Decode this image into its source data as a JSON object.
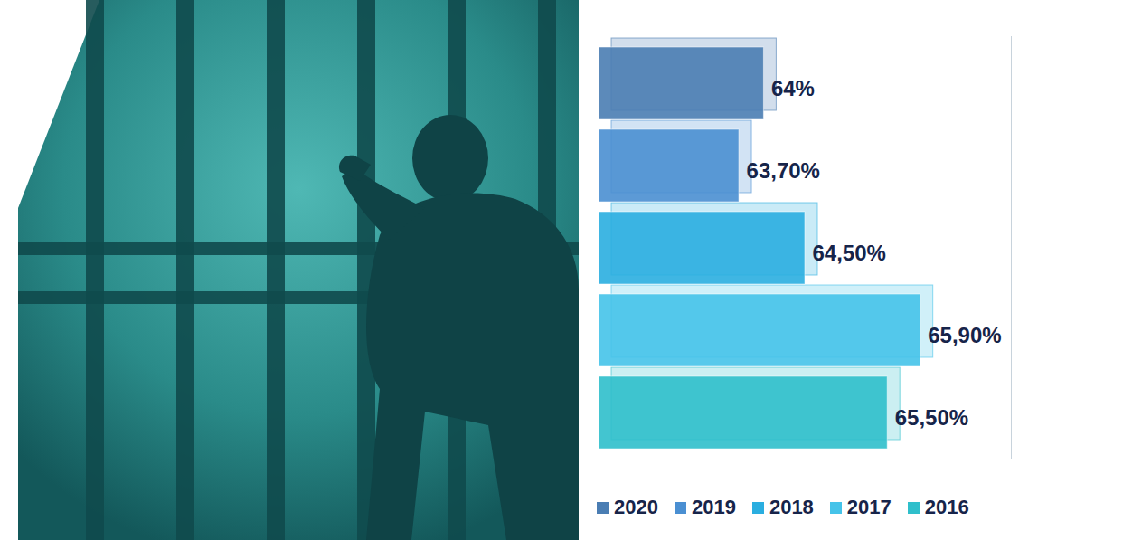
{
  "chart_data": {
    "type": "bar",
    "orientation": "horizontal",
    "categories": [
      "2020",
      "2019",
      "2018",
      "2017",
      "2016"
    ],
    "values": [
      64,
      63.7,
      64.5,
      65.9,
      65.5
    ],
    "value_labels": [
      "64%",
      "63,70%",
      "64,50%",
      "65,90%",
      "65,50%"
    ],
    "colors": [
      "#4a7db3",
      "#4a8fd2",
      "#2aaee0",
      "#45c3e9",
      "#2fbfcb"
    ],
    "xlim": [
      62,
      67
    ],
    "xticks": [],
    "data_labels": true,
    "tick_labels": false,
    "grid": false,
    "legend": "bottom"
  }
}
